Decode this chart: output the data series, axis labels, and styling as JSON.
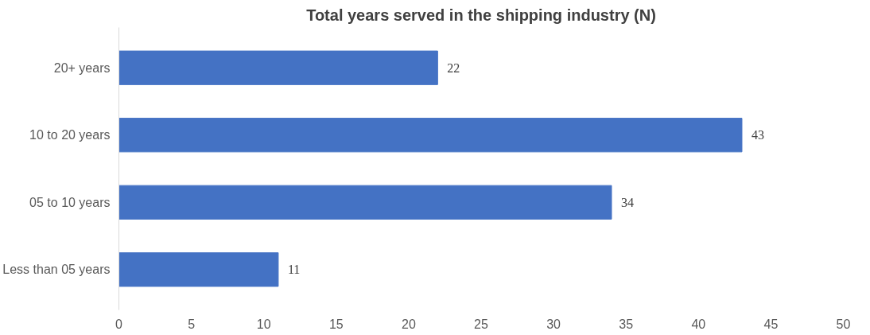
{
  "chart_data": {
    "type": "bar",
    "orientation": "horizontal",
    "title": "Total years served in the shipping industry (N)",
    "categories": [
      "20+ years",
      "10 to 20 years",
      "05 to 10 years",
      "Less than 05 years"
    ],
    "values": [
      22,
      43,
      34,
      11
    ],
    "color": "#4472c4",
    "xlim": [
      0,
      50
    ],
    "xticks": [
      0,
      5,
      10,
      15,
      20,
      25,
      30,
      35,
      40,
      45,
      50
    ],
    "grid": false,
    "data_labels": true
  }
}
